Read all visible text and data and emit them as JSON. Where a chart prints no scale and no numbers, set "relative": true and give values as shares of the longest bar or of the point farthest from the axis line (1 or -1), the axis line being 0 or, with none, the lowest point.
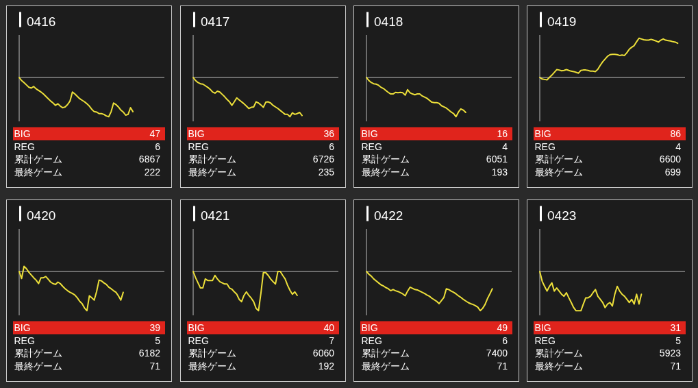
{
  "chart_data": [
    {
      "type": "line",
      "title": "0416",
      "relative": true,
      "categories": [
        null,
        null,
        null,
        null,
        null,
        null,
        null,
        null,
        null,
        null,
        null,
        null,
        null,
        null,
        null,
        null,
        null,
        null,
        null,
        null,
        null,
        null,
        null,
        null,
        null,
        null,
        null,
        null,
        null,
        null,
        null,
        null,
        null,
        null,
        null,
        null,
        null,
        null,
        null,
        null,
        null,
        null,
        null,
        null,
        null,
        null,
        null,
        null,
        null,
        null,
        null,
        null,
        null,
        null,
        null,
        null,
        null,
        null,
        null,
        null,
        null
      ],
      "series": [
        {
          "color": "#ecdf3a",
          "values": [
            0,
            -0.08,
            -0.13,
            -0.19,
            -0.25,
            -0.27,
            -0.23,
            -0.29,
            -0.33,
            -0.37,
            -0.42,
            -0.48,
            -0.54,
            -0.6,
            -0.65,
            -0.71,
            -0.67,
            -0.73,
            -0.77,
            -0.75,
            -0.69,
            -0.6,
            -0.37,
            -0.42,
            -0.48,
            -0.54,
            -0.58,
            -0.62,
            -0.67,
            -0.73,
            -0.81,
            -0.87,
            -0.88,
            -0.92,
            -0.92,
            -0.94,
            -0.98,
            -1,
            -0.87,
            -0.65,
            -0.69,
            -0.75,
            -0.83,
            -0.88,
            -0.96,
            -0.94,
            -0.77,
            -0.87,
            null,
            null,
            null,
            null,
            null,
            null,
            null,
            null,
            null,
            null,
            null,
            null,
            null
          ]
        }
      ],
      "annotations": [
        "BIG",
        "47",
        "REG",
        "6",
        "累計ゲーム",
        "6867",
        "最終ゲーム",
        "222"
      ]
    },
    {
      "type": "line",
      "title": "0417",
      "relative": true,
      "categories": [
        null,
        null,
        null,
        null,
        null,
        null,
        null,
        null,
        null,
        null,
        null,
        null,
        null,
        null,
        null,
        null,
        null,
        null,
        null,
        null,
        null,
        null,
        null,
        null,
        null,
        null,
        null,
        null,
        null,
        null,
        null,
        null,
        null,
        null,
        null,
        null,
        null,
        null,
        null,
        null,
        null,
        null,
        null,
        null,
        null,
        null,
        null,
        null,
        null,
        null,
        null,
        null,
        null,
        null,
        null,
        null,
        null,
        null,
        null,
        null,
        null
      ],
      "series": [
        {
          "color": "#ecdf3a",
          "values": [
            0,
            -0.08,
            -0.13,
            -0.16,
            -0.17,
            -0.21,
            -0.25,
            -0.3,
            -0.37,
            -0.4,
            -0.35,
            -0.37,
            -0.43,
            -0.49,
            -0.56,
            -0.62,
            -0.71,
            -0.62,
            -0.52,
            -0.57,
            -0.62,
            -0.67,
            -0.73,
            -0.79,
            -0.76,
            -0.75,
            -0.62,
            -0.65,
            -0.7,
            -0.76,
            -0.63,
            -0.62,
            -0.65,
            -0.71,
            -0.75,
            -0.79,
            -0.84,
            -0.89,
            -0.94,
            -0.94,
            -1,
            -0.9,
            -0.94,
            -0.92,
            -0.89,
            -0.97,
            null,
            null,
            null,
            null,
            null,
            null,
            null,
            null,
            null,
            null,
            null,
            null,
            null,
            null,
            null
          ]
        }
      ],
      "annotations": [
        "BIG",
        "36",
        "REG",
        "6",
        "累計ゲーム",
        "6726",
        "最終ゲーム",
        "235"
      ]
    },
    {
      "type": "line",
      "title": "0418",
      "relative": true,
      "categories": [
        null,
        null,
        null,
        null,
        null,
        null,
        null,
        null,
        null,
        null,
        null,
        null,
        null,
        null,
        null,
        null,
        null,
        null,
        null,
        null,
        null,
        null,
        null,
        null,
        null,
        null,
        null,
        null,
        null,
        null,
        null,
        null,
        null,
        null,
        null,
        null,
        null,
        null,
        null,
        null,
        null,
        null,
        null,
        null,
        null,
        null,
        null,
        null,
        null,
        null,
        null,
        null,
        null,
        null,
        null,
        null,
        null,
        null,
        null,
        null,
        null
      ],
      "series": [
        {
          "color": "#ecdf3a",
          "values": [
            0,
            -0.08,
            -0.13,
            -0.16,
            -0.17,
            -0.2,
            -0.25,
            -0.28,
            -0.33,
            -0.38,
            -0.42,
            -0.42,
            -0.38,
            -0.39,
            -0.38,
            -0.39,
            -0.45,
            -0.31,
            -0.39,
            -0.42,
            -0.44,
            -0.42,
            -0.42,
            -0.47,
            -0.5,
            -0.53,
            -0.58,
            -0.63,
            -0.64,
            -0.64,
            -0.66,
            -0.72,
            -0.75,
            -0.78,
            -0.83,
            -0.88,
            -0.92,
            -1,
            -0.88,
            -0.8,
            -0.83,
            -0.89,
            null,
            null,
            null,
            null,
            null,
            null,
            null,
            null,
            null,
            null,
            null,
            null,
            null,
            null,
            null,
            null,
            null,
            null,
            null
          ]
        }
      ],
      "annotations": [
        "BIG",
        "16",
        "REG",
        "4",
        "累計ゲーム",
        "6051",
        "最終ゲーム",
        "193"
      ]
    },
    {
      "type": "line",
      "title": "0419",
      "relative": true,
      "categories": [
        null,
        null,
        null,
        null,
        null,
        null,
        null,
        null,
        null,
        null,
        null,
        null,
        null,
        null,
        null,
        null,
        null,
        null,
        null,
        null,
        null,
        null,
        null,
        null,
        null,
        null,
        null,
        null,
        null,
        null,
        null,
        null,
        null,
        null,
        null,
        null,
        null,
        null,
        null,
        null,
        null,
        null,
        null,
        null,
        null,
        null,
        null,
        null,
        null,
        null,
        null,
        null,
        null,
        null,
        null,
        null,
        null,
        null,
        null,
        null,
        null
      ],
      "series": [
        {
          "color": "#ecdf3a",
          "values": [
            0,
            -0.04,
            -0.05,
            -0.06,
            0,
            0.06,
            0.13,
            0.2,
            0.19,
            0.17,
            0.18,
            0.2,
            0.18,
            0.16,
            0.15,
            0.13,
            0.11,
            0.18,
            0.19,
            0.19,
            0.18,
            0.16,
            0.16,
            0.15,
            0.21,
            0.31,
            0.4,
            0.47,
            0.54,
            0.58,
            0.59,
            0.59,
            0.58,
            0.56,
            0.57,
            0.56,
            0.63,
            0.72,
            0.77,
            0.81,
            0.91,
            1,
            0.98,
            0.96,
            0.95,
            0.95,
            0.97,
            0.95,
            0.93,
            0.9,
            0.95,
            0.98,
            0.95,
            0.94,
            0.93,
            0.91,
            0.9,
            0.87,
            null,
            null,
            null
          ]
        }
      ],
      "annotations": [
        "BIG",
        "86",
        "REG",
        "4",
        "累計ゲーム",
        "6600",
        "最終ゲーム",
        "699"
      ]
    },
    {
      "type": "line",
      "title": "0420",
      "relative": true,
      "categories": [
        null,
        null,
        null,
        null,
        null,
        null,
        null,
        null,
        null,
        null,
        null,
        null,
        null,
        null,
        null,
        null,
        null,
        null,
        null,
        null,
        null,
        null,
        null,
        null,
        null,
        null,
        null,
        null,
        null,
        null,
        null,
        null,
        null,
        null,
        null,
        null,
        null,
        null,
        null,
        null,
        null,
        null,
        null,
        null,
        null,
        null,
        null,
        null,
        null,
        null,
        null,
        null,
        null,
        null,
        null,
        null,
        null,
        null,
        null,
        null,
        null
      ],
      "series": [
        {
          "color": "#ecdf3a",
          "values": [
            0,
            -0.18,
            0.13,
            0.07,
            -0.02,
            -0.09,
            -0.16,
            -0.22,
            -0.31,
            -0.16,
            -0.16,
            -0.13,
            -0.2,
            -0.27,
            -0.31,
            -0.33,
            -0.27,
            -0.31,
            -0.38,
            -0.44,
            -0.49,
            -0.53,
            -0.56,
            -0.6,
            -0.67,
            -0.76,
            -0.82,
            -0.93,
            -1,
            -0.62,
            -0.67,
            -0.73,
            -0.51,
            -0.22,
            -0.24,
            -0.29,
            -0.33,
            -0.4,
            -0.44,
            -0.49,
            -0.53,
            -0.62,
            -0.73,
            -0.53,
            null,
            null,
            null,
            null,
            null,
            null,
            null,
            null,
            null,
            null,
            null,
            null,
            null,
            null,
            null,
            null,
            null
          ]
        }
      ],
      "annotations": [
        "BIG",
        "39",
        "REG",
        "5",
        "累計ゲーム",
        "6182",
        "最終ゲーム",
        "71"
      ]
    },
    {
      "type": "line",
      "title": "0421",
      "relative": true,
      "categories": [
        null,
        null,
        null,
        null,
        null,
        null,
        null,
        null,
        null,
        null,
        null,
        null,
        null,
        null,
        null,
        null,
        null,
        null,
        null,
        null,
        null,
        null,
        null,
        null,
        null,
        null,
        null,
        null,
        null,
        null,
        null,
        null,
        null,
        null,
        null,
        null,
        null,
        null,
        null,
        null,
        null,
        null,
        null,
        null,
        null,
        null,
        null,
        null,
        null,
        null,
        null,
        null,
        null,
        null,
        null,
        null,
        null,
        null,
        null,
        null,
        null
      ],
      "series": [
        {
          "color": "#ecdf3a",
          "values": [
            0,
            -0.16,
            -0.29,
            -0.42,
            -0.42,
            -0.19,
            -0.23,
            -0.23,
            -0.23,
            -0.1,
            -0.19,
            -0.26,
            -0.29,
            -0.32,
            -0.32,
            -0.42,
            -0.45,
            -0.52,
            -0.58,
            -0.71,
            -0.77,
            -0.61,
            -0.52,
            -0.61,
            -0.68,
            -0.77,
            -0.94,
            -1,
            -0.55,
            -0.03,
            -0.03,
            -0.1,
            -0.19,
            -0.26,
            -0.32,
            0,
            0,
            -0.1,
            -0.19,
            -0.35,
            -0.48,
            -0.58,
            -0.52,
            -0.61,
            null,
            null,
            null,
            null,
            null,
            null,
            null,
            null,
            null,
            null,
            null,
            null,
            null,
            null,
            null,
            null,
            null
          ]
        }
      ],
      "annotations": [
        "BIG",
        "40",
        "REG",
        "7",
        "累計ゲーム",
        "6060",
        "最終ゲーム",
        "192"
      ]
    },
    {
      "type": "line",
      "title": "0422",
      "relative": true,
      "categories": [
        null,
        null,
        null,
        null,
        null,
        null,
        null,
        null,
        null,
        null,
        null,
        null,
        null,
        null,
        null,
        null,
        null,
        null,
        null,
        null,
        null,
        null,
        null,
        null,
        null,
        null,
        null,
        null,
        null,
        null,
        null,
        null,
        null,
        null,
        null,
        null,
        null,
        null,
        null,
        null,
        null,
        null,
        null,
        null,
        null,
        null,
        null,
        null,
        null,
        null,
        null,
        null,
        null,
        null,
        null,
        null,
        null,
        null,
        null,
        null,
        null
      ],
      "series": [
        {
          "color": "#ecdf3a",
          "values": [
            0,
            -0.07,
            -0.12,
            -0.19,
            -0.24,
            -0.29,
            -0.34,
            -0.37,
            -0.41,
            -0.44,
            -0.49,
            -0.46,
            -0.49,
            -0.51,
            -0.54,
            -0.57,
            -0.62,
            -0.5,
            -0.4,
            -0.43,
            -0.46,
            -0.47,
            -0.5,
            -0.53,
            -0.56,
            -0.6,
            -0.63,
            -0.68,
            -0.72,
            -0.76,
            -0.82,
            -0.74,
            -0.66,
            -0.44,
            -0.46,
            -0.5,
            -0.53,
            -0.57,
            -0.62,
            -0.66,
            -0.71,
            -0.75,
            -0.79,
            -0.82,
            -0.84,
            -0.87,
            -0.91,
            -1,
            -0.94,
            -0.84,
            -0.69,
            -0.57,
            -0.44,
            null,
            null,
            null,
            null,
            null,
            null,
            null,
            null
          ]
        }
      ],
      "annotations": [
        "BIG",
        "49",
        "REG",
        "6",
        "累計ゲーム",
        "7400",
        "最終ゲーム",
        "71"
      ]
    },
    {
      "type": "line",
      "title": "0423",
      "relative": true,
      "categories": [
        null,
        null,
        null,
        null,
        null,
        null,
        null,
        null,
        null,
        null,
        null,
        null,
        null,
        null,
        null,
        null,
        null,
        null,
        null,
        null,
        null,
        null,
        null,
        null,
        null,
        null,
        null,
        null,
        null,
        null,
        null,
        null,
        null,
        null,
        null,
        null,
        null,
        null,
        null,
        null,
        null,
        null,
        null,
        null,
        null,
        null,
        null,
        null,
        null,
        null,
        null,
        null,
        null,
        null,
        null,
        null,
        null,
        null,
        null,
        null,
        null
      ],
      "series": [
        {
          "color": "#ecdf3a",
          "values": [
            0,
            -0.25,
            -0.38,
            -0.5,
            -0.38,
            -0.29,
            -0.5,
            -0.42,
            -0.5,
            -0.58,
            -0.63,
            -0.54,
            -0.67,
            -0.79,
            -0.92,
            -1,
            -1,
            -1,
            -0.83,
            -0.67,
            -0.67,
            -0.63,
            -0.54,
            -0.46,
            -0.63,
            -0.71,
            -0.79,
            -0.92,
            -0.83,
            -0.79,
            -0.88,
            -0.58,
            -0.38,
            -0.5,
            -0.58,
            -0.63,
            -0.71,
            -0.79,
            -0.71,
            -0.83,
            -0.58,
            -0.83,
            -0.58,
            null,
            null,
            null,
            null,
            null,
            null,
            null,
            null,
            null,
            null,
            null,
            null,
            null,
            null,
            null,
            null,
            null,
            null
          ]
        }
      ],
      "annotations": [
        "BIG",
        "31",
        "REG",
        "5",
        "累計ゲーム",
        "5923",
        "最終ゲーム",
        "71"
      ]
    }
  ]
}
